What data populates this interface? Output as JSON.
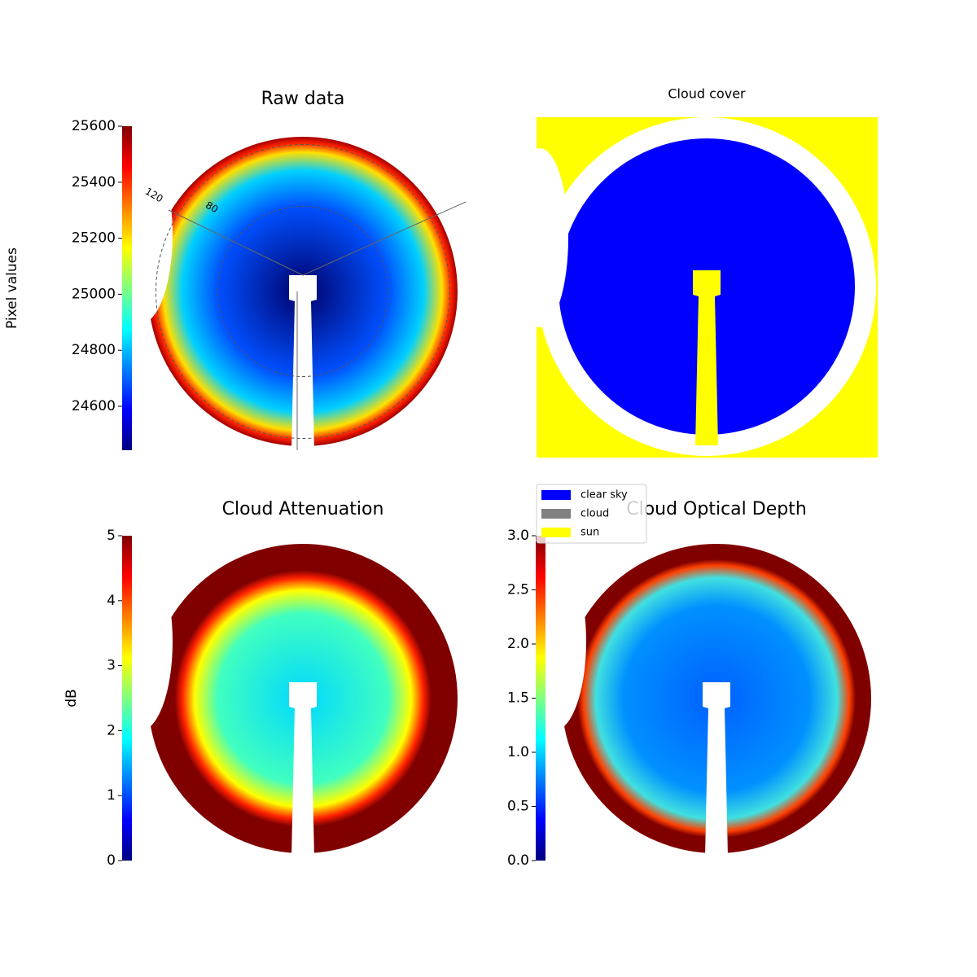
{
  "chart_data": [
    {
      "type": "image",
      "title": "Raw data",
      "ylabel": "Pixel values",
      "ylim": [
        24443,
        25600
      ],
      "yticks": [
        24600,
        24800,
        25000,
        25200,
        25400,
        25600
      ],
      "annotations": [
        "120",
        "80"
      ]
    },
    {
      "type": "mask",
      "title": "Cloud cover",
      "series": [
        {
          "name": "clear sky",
          "color": "#0000ff"
        },
        {
          "name": "cloud",
          "color": "#808080"
        },
        {
          "name": "sun",
          "color": "#ffff00"
        }
      ]
    },
    {
      "type": "image",
      "title": "Cloud Attenuation",
      "ylabel": "dB",
      "ylim": [
        0,
        5
      ],
      "yticks": [
        0,
        1,
        2,
        3,
        4,
        5
      ]
    },
    {
      "type": "image",
      "title": "Cloud Optical Depth",
      "ylim": [
        0,
        3
      ],
      "yticks": [
        {
          "value": 0,
          "label": "0.0"
        },
        0.5,
        {
          "value": 1,
          "label": "1.0"
        },
        1.5,
        {
          "value": 2,
          "label": "2.0"
        },
        2.5,
        {
          "value": 3,
          "label": "3.0"
        }
      ]
    }
  ]
}
